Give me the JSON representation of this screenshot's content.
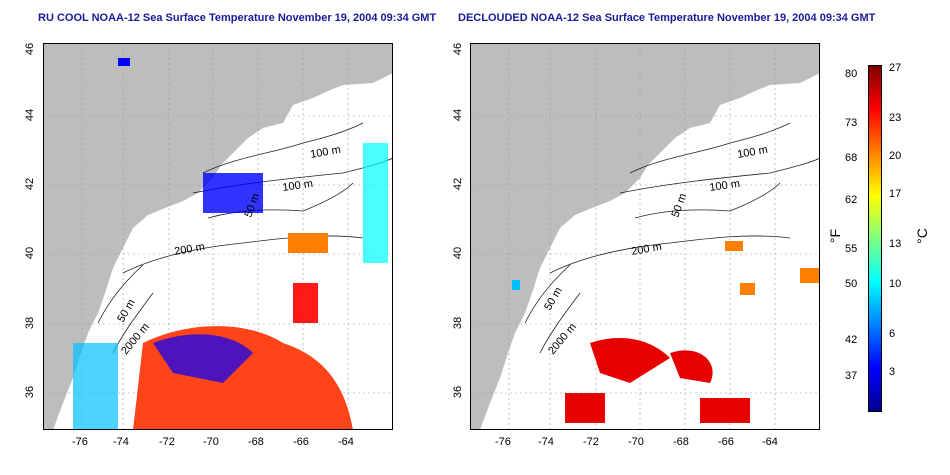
{
  "maps": [
    {
      "title": "RU COOL NOAA-12 Sea Surface Temperature November 19, 2004 09:34 GMT",
      "contours": [
        "100 m",
        "100 m",
        "50 m",
        "200 m",
        "50 m",
        "2000 m"
      ]
    },
    {
      "title": "DECLOUDED NOAA-12 Sea Surface Temperature November 19, 2004 09:34 GMT",
      "contours": [
        "100 m",
        "100 m",
        "50 m",
        "200 m",
        "50 m",
        "2000 m"
      ]
    }
  ],
  "axes": {
    "x_ticks": [
      "-76",
      "-74",
      "-72",
      "-70",
      "-68",
      "-66",
      "-64"
    ],
    "y_ticks": [
      "46",
      "44",
      "42",
      "40",
      "38",
      "36"
    ]
  },
  "colorbar": {
    "fahrenheit_ticks": [
      "80",
      "73",
      "68",
      "62",
      "55",
      "50",
      "42",
      "37"
    ],
    "celsius_ticks": [
      "27",
      "23",
      "20",
      "17",
      "13",
      "10",
      "6",
      "3"
    ],
    "fahrenheit_unit": "°F",
    "celsius_unit": "°C",
    "colors": [
      "#00008f",
      "#0000ff",
      "#0080ff",
      "#00ffff",
      "#80ff80",
      "#ffff00",
      "#ff8000",
      "#ff0000",
      "#800000"
    ]
  },
  "colors": {
    "land": "#bdbdbd",
    "title": "#1a1a9a",
    "grid": "#9a9a9a"
  }
}
